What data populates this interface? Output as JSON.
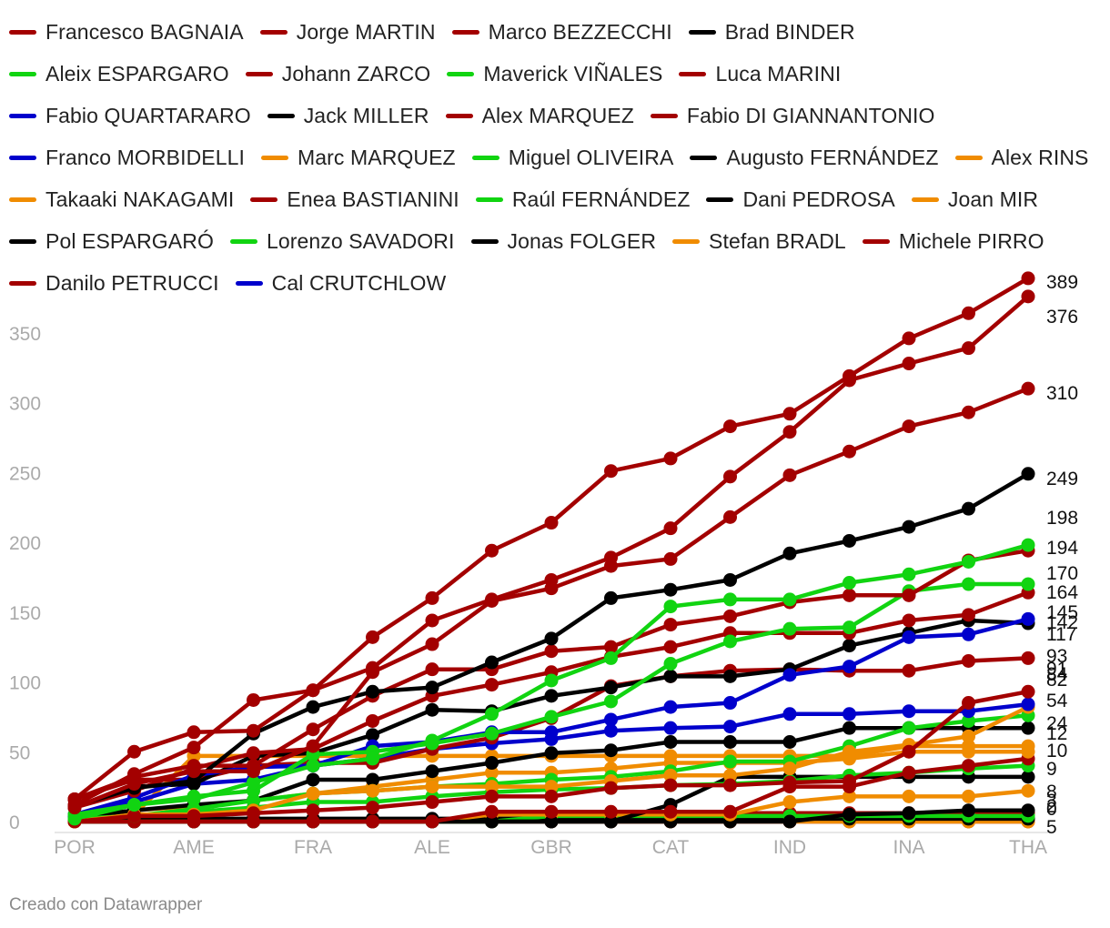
{
  "footer": {
    "credit": "Creado con Datawrapper"
  },
  "chart_data": {
    "type": "line",
    "title": "",
    "xlabel": "",
    "ylabel": "",
    "ylim": [
      0,
      389
    ],
    "yticks": [
      0,
      50,
      100,
      150,
      200,
      250,
      300,
      350
    ],
    "x": [
      "POR",
      "",
      "AME",
      "",
      "FRA",
      "",
      "ALE",
      "",
      "GBR",
      "",
      "CAT",
      "",
      "IND",
      "",
      "INA",
      "",
      "THA"
    ],
    "x_tick_labels": [
      "POR",
      "AME",
      "FRA",
      "ALE",
      "GBR",
      "CAT",
      "IND",
      "INA",
      "THA"
    ],
    "legend_position": "top",
    "grid": false,
    "end_labels": [
      "389",
      "376",
      "310",
      "249",
      "198",
      "194",
      "170",
      "164",
      "145",
      "142",
      "117",
      "93",
      "91",
      "84",
      "82",
      "54",
      "24",
      "12",
      "10",
      "9",
      "8",
      "3",
      "2",
      "0",
      "5"
    ],
    "series": [
      {
        "name": "Francesco BAGNAIA",
        "color": "#a30000",
        "values": [
          16,
          50,
          64,
          65,
          94,
          132,
          160,
          194,
          214,
          251,
          260,
          283,
          292,
          319,
          346,
          364,
          389
        ]
      },
      {
        "name": "Jorge MARTIN",
        "color": "#a30000",
        "values": [
          10,
          27,
          36,
          36,
          54,
          107,
          127,
          158,
          167,
          183,
          188,
          218,
          248,
          265,
          283,
          293,
          310
        ]
      },
      {
        "name": "Marco BEZZECCHI",
        "color": "#a30000",
        "values": [
          12,
          34,
          53,
          87,
          94,
          110,
          144,
          159,
          173,
          189,
          210,
          247,
          279,
          316,
          328,
          339,
          376
        ]
      },
      {
        "name": "Brad BINDER",
        "color": "#000000",
        "values": [
          11,
          24,
          29,
          63,
          82,
          93,
          96,
          114,
          131,
          160,
          166,
          173,
          192,
          201,
          211,
          224,
          249
        ]
      },
      {
        "name": "Aleix ESPARGARO",
        "color": "#11d411",
        "values": [
          2,
          12,
          16,
          28,
          40,
          45,
          58,
          77,
          101,
          117,
          154,
          159,
          159,
          171,
          177,
          186,
          198
        ]
      },
      {
        "name": "Johann ZARCO",
        "color": "#a30000",
        "values": [
          16,
          32,
          40,
          40,
          66,
          90,
          109,
          109,
          122,
          125,
          141,
          147,
          157,
          162,
          162,
          187,
          194
        ]
      },
      {
        "name": "Maverick VIÑALES",
        "color": "#11d411",
        "values": [
          5,
          12,
          18,
          22,
          48,
          50,
          56,
          63,
          75,
          86,
          113,
          129,
          138,
          139,
          165,
          170,
          170
        ]
      },
      {
        "name": "Luca MARINI",
        "color": "#a30000",
        "values": [
          10,
          22,
          38,
          49,
          52,
          72,
          90,
          98,
          107,
          118,
          125,
          135,
          135,
          135,
          144,
          148,
          164
        ]
      },
      {
        "name": "Fabio QUARTARARO",
        "color": "#0000cc",
        "values": [
          5,
          17,
          33,
          39,
          40,
          54,
          57,
          64,
          64,
          73,
          82,
          85,
          105,
          111,
          132,
          134,
          145
        ]
      },
      {
        "name": "Jack MILLER",
        "color": "#000000",
        "values": [
          10,
          25,
          27,
          47,
          49,
          62,
          80,
          79,
          90,
          96,
          104,
          104,
          109,
          126,
          135,
          144,
          142
        ]
      },
      {
        "name": "Alex MARQUEZ",
        "color": "#a30000",
        "values": [
          16,
          30,
          30,
          40,
          42,
          42,
          52,
          60,
          74,
          97,
          104,
          108,
          109,
          108,
          108,
          115,
          117
        ]
      },
      {
        "name": "Fabio DI GIANNANTONIO",
        "color": "#a30000",
        "values": [
          0,
          4,
          4,
          6,
          8,
          10,
          14,
          18,
          18,
          24,
          26,
          26,
          28,
          29,
          50,
          85,
          93
        ]
      },
      {
        "name": "Franco MORBIDELLI",
        "color": "#0000cc",
        "values": [
          4,
          14,
          27,
          30,
          40,
          45,
          52,
          56,
          59,
          65,
          67,
          68,
          77,
          77,
          79,
          79,
          84
        ]
      },
      {
        "name": "Marc MARQUEZ",
        "color": "#f08c00",
        "values": [
          0,
          5,
          5,
          8,
          20,
          22,
          25,
          25,
          25,
          29,
          33,
          33,
          38,
          50,
          55,
          61,
          82
        ]
      },
      {
        "name": "Miguel OLIVEIRA",
        "color": "#11d411",
        "values": [
          2,
          4,
          9,
          15,
          20,
          22,
          25,
          27,
          30,
          32,
          36,
          43,
          43,
          54,
          67,
          72,
          76
        ]
      },
      {
        "name": "Augusto FERNÁNDEZ",
        "color": "#000000",
        "values": [
          3,
          8,
          12,
          15,
          30,
          30,
          36,
          42,
          49,
          51,
          57,
          57,
          57,
          67,
          67,
          67,
          67
        ]
      },
      {
        "name": "Alex RINS",
        "color": "#f08c00",
        "values": [
          0,
          5,
          47,
          47,
          47,
          47,
          47,
          47,
          47,
          47,
          47,
          47,
          47,
          47,
          54,
          54,
          54
        ]
      },
      {
        "name": "Takaaki NAKAGAMI",
        "color": "#f08c00",
        "values": [
          2,
          8,
          11,
          15,
          20,
          25,
          30,
          35,
          35,
          38,
          42,
          42,
          42,
          45,
          50,
          50,
          50
        ]
      },
      {
        "name": "Enea BASTIANINI",
        "color": "#a30000",
        "values": [
          0,
          0,
          0,
          0,
          0,
          0,
          0,
          7,
          7,
          7,
          7,
          7,
          25,
          25,
          35,
          40,
          45
        ]
      },
      {
        "name": "Raúl FERNÁNDEZ",
        "color": "#11d411",
        "values": [
          2,
          4,
          7,
          10,
          14,
          14,
          18,
          21,
          23,
          24,
          26,
          27,
          29,
          33,
          35,
          38,
          40
        ]
      },
      {
        "name": "Dani PEDROSA",
        "color": "#000000",
        "values": [
          0,
          0,
          0,
          0,
          0,
          0,
          0,
          0,
          0,
          0,
          12,
          32,
          32,
          32,
          32,
          32,
          32
        ]
      },
      {
        "name": "Joan MIR",
        "color": "#f08c00",
        "values": [
          0,
          0,
          0,
          0,
          0,
          0,
          0,
          5,
          5,
          5,
          5,
          5,
          14,
          18,
          18,
          18,
          22
        ]
      },
      {
        "name": "Pol ESPARGARÓ",
        "color": "#000000",
        "values": [
          0,
          0,
          0,
          0,
          0,
          0,
          0,
          0,
          0,
          0,
          0,
          0,
          0,
          5,
          6,
          8,
          8
        ]
      },
      {
        "name": "Lorenzo SAVADORI",
        "color": "#11d411",
        "values": [
          0,
          0,
          0,
          0,
          0,
          0,
          0,
          0,
          4,
          4,
          4,
          4,
          4,
          4,
          4,
          4,
          4
        ]
      },
      {
        "name": "Jonas FOLGER",
        "color": "#000000",
        "values": [
          2,
          2,
          2,
          2,
          2,
          2,
          2,
          2,
          2,
          2,
          2,
          2,
          2,
          2,
          2,
          2,
          2
        ]
      },
      {
        "name": "Stefan BRADL",
        "color": "#f08c00",
        "values": [
          0,
          0,
          0,
          0,
          0,
          0,
          0,
          0,
          0,
          0,
          0,
          0,
          0,
          0,
          0,
          0,
          0
        ]
      },
      {
        "name": "Michele PIRRO",
        "color": "#a30000",
        "values": [
          0,
          0,
          0,
          0,
          0,
          0,
          0,
          6,
          6,
          6,
          6,
          6,
          6,
          6,
          6,
          6,
          6
        ]
      },
      {
        "name": "Danilo PETRUCCI",
        "color": "#a30000",
        "values": [
          0,
          0,
          0,
          0,
          0,
          0,
          0,
          0,
          0,
          0,
          0,
          0,
          0,
          0,
          0,
          0,
          0
        ]
      },
      {
        "name": "Cal CRUTCHLOW",
        "color": "#0000cc",
        "values": [
          0,
          0,
          0,
          0,
          0,
          0,
          0,
          0,
          0,
          0,
          0,
          0,
          0,
          2,
          2,
          2,
          2
        ]
      }
    ]
  }
}
